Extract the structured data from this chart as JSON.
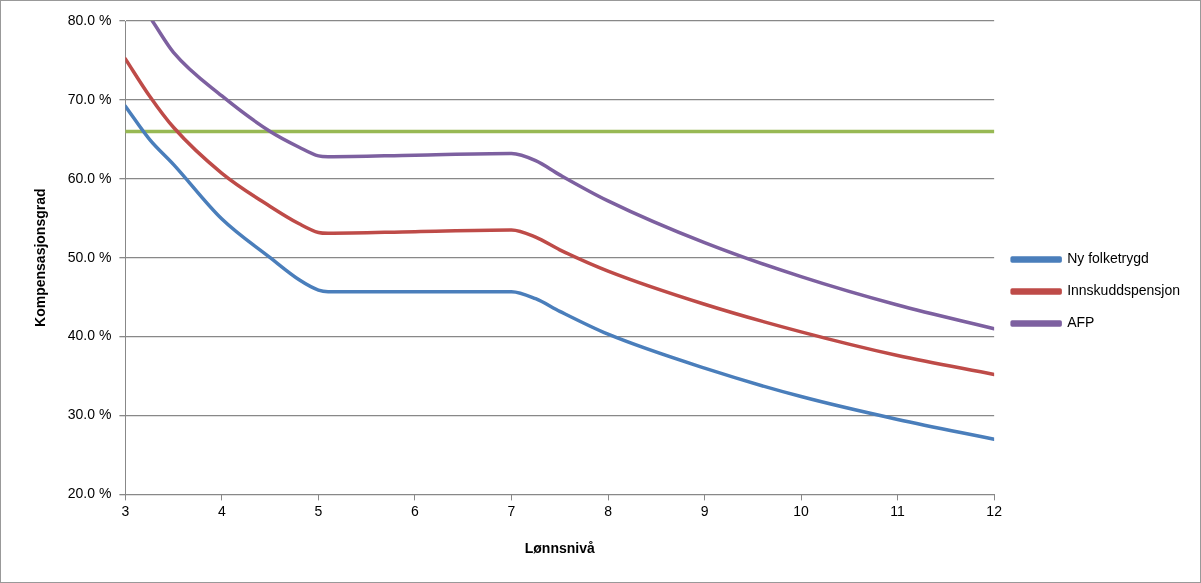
{
  "chart_data": {
    "type": "line",
    "xlabel": "Lønnsnivå",
    "ylabel": "Kompensasjonsgrad",
    "xlim": [
      3,
      12
    ],
    "xticks": [
      3,
      4,
      5,
      6,
      7,
      8,
      9,
      10,
      11,
      12
    ],
    "ylim": [
      20,
      80
    ],
    "yticks": [
      {
        "value": 20,
        "label": "20.0 %"
      },
      {
        "value": 30,
        "label": "30.0 %"
      },
      {
        "value": 40,
        "label": "40.0 %"
      },
      {
        "value": 50,
        "label": "50.0 %"
      },
      {
        "value": 60,
        "label": "60.0 %"
      },
      {
        "value": 70,
        "label": "70.0 %"
      },
      {
        "value": 80,
        "label": "80.0 %"
      }
    ],
    "grid": "y",
    "legend": "right",
    "marker": "none",
    "line_style": "solid",
    "ref_lines": [
      {
        "axis": "y",
        "value": 66,
        "label": null,
        "color": "#98b954"
      }
    ],
    "series": [
      {
        "name": "Ny folketrygd",
        "color": "#4a7ebb",
        "x": [
          3,
          3.25,
          3.5,
          4,
          4.5,
          4.8,
          5,
          5.1,
          6,
          7,
          7.25,
          7.5,
          8,
          9,
          10,
          11,
          12
        ],
        "values": [
          69.2,
          65,
          61.8,
          54.9,
          50,
          47.2,
          45.9,
          45.7,
          45.7,
          45.7,
          44.8,
          43.2,
          40.3,
          36.0,
          32.4,
          29.5,
          27.0
        ]
      },
      {
        "name": "Innskuddspensjon",
        "color": "#be4b48",
        "x": [
          3,
          3.25,
          3.5,
          4,
          4.5,
          4.8,
          5,
          5.1,
          6,
          7,
          7.25,
          7.5,
          8,
          9,
          10,
          11,
          12
        ],
        "values": [
          75.2,
          70.5,
          66.5,
          60.7,
          56.5,
          54.3,
          53.2,
          53.1,
          53.3,
          53.5,
          52.6,
          51.0,
          48.3,
          44.1,
          40.6,
          37.6,
          35.2
        ]
      },
      {
        "name": "AFP",
        "color": "#7d60a0",
        "x": [
          3.28,
          3.5,
          4,
          4.5,
          4.8,
          5,
          5.1,
          6,
          7,
          7.25,
          7.5,
          8,
          9,
          10,
          11,
          12
        ],
        "values": [
          80,
          76,
          70.5,
          66,
          64,
          62.9,
          62.8,
          63.0,
          63.2,
          62.3,
          60.5,
          57.2,
          51.9,
          47.6,
          44.0,
          41.0
        ]
      }
    ]
  }
}
